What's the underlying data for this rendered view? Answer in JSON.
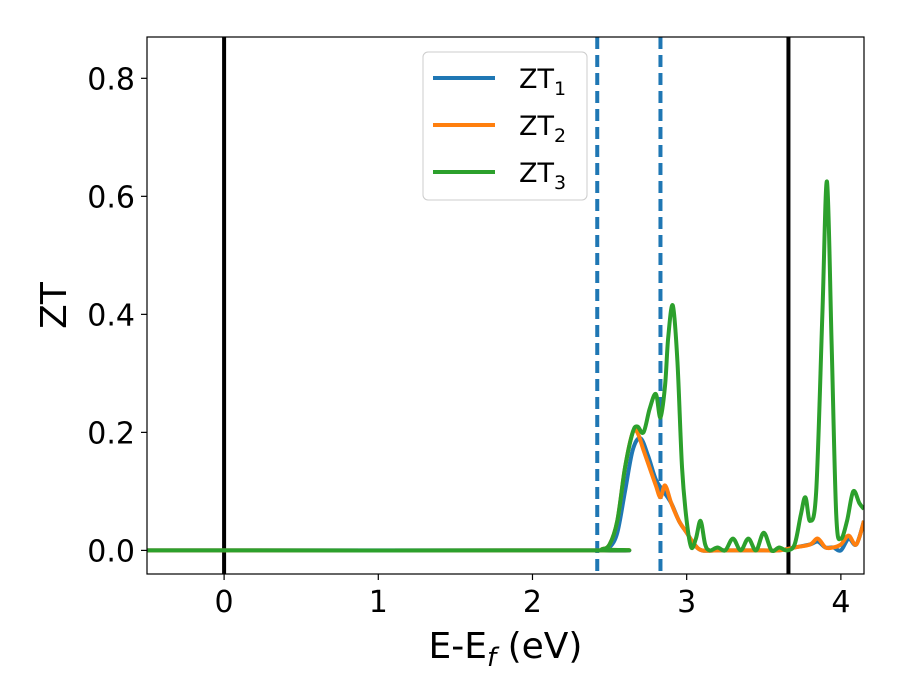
{
  "chart_data": {
    "type": "line",
    "xlabel": "E-E",
    "xlabel_sub": "f",
    "xlabel_unit": " (eV)",
    "ylabel": "ZT",
    "xlim": [
      -0.5,
      4.15
    ],
    "ylim": [
      -0.04,
      0.87
    ],
    "xticks": [
      0,
      1,
      2,
      3,
      4
    ],
    "xtick_labels": [
      "0",
      "1",
      "2",
      "3",
      "4"
    ],
    "yticks": [
      0.0,
      0.2,
      0.4,
      0.6,
      0.8
    ],
    "ytick_labels": [
      "0.0",
      "0.2",
      "0.4",
      "0.6",
      "0.8"
    ],
    "grid": false,
    "legend_position": "top-center",
    "vlines": [
      {
        "x": 0.0,
        "style": "solid",
        "color": "#000000"
      },
      {
        "x": 3.66,
        "style": "solid",
        "color": "#000000"
      },
      {
        "x": 2.42,
        "style": "dashed",
        "color": "#1f77b4"
      },
      {
        "x": 2.83,
        "style": "dashed",
        "color": "#1f77b4"
      }
    ],
    "series": [
      {
        "name": "ZT",
        "subscript": "1",
        "color": "#1f77b4",
        "x": [
          -0.5,
          2.4,
          2.45,
          2.5,
          2.55,
          2.6,
          2.65,
          2.7,
          2.75,
          2.8,
          2.85,
          2.9,
          2.95,
          3.0,
          3.05,
          3.1,
          3.2,
          3.3,
          3.4,
          3.5,
          3.6,
          3.7,
          3.8,
          3.85,
          3.9,
          3.95,
          4.0,
          4.05,
          4.1,
          4.15
        ],
        "y": [
          0.0,
          0.0,
          0.0,
          0.005,
          0.03,
          0.1,
          0.17,
          0.19,
          0.16,
          0.12,
          0.1,
          0.08,
          0.05,
          0.03,
          0.01,
          0.0,
          0.0,
          0.0,
          0.0,
          0.0,
          0.0,
          0.005,
          0.01,
          0.015,
          0.005,
          0.005,
          0.0,
          0.02,
          0.01,
          0.05
        ]
      },
      {
        "name": "ZT",
        "subscript": "2",
        "color": "#ff7f0e",
        "x": [
          -0.5,
          2.4,
          2.45,
          2.5,
          2.55,
          2.6,
          2.65,
          2.68,
          2.72,
          2.76,
          2.8,
          2.83,
          2.86,
          2.9,
          2.95,
          3.0,
          3.05,
          3.1,
          3.2,
          3.3,
          3.4,
          3.5,
          3.6,
          3.7,
          3.8,
          3.85,
          3.9,
          3.95,
          4.0,
          4.05,
          4.1,
          4.15
        ],
        "y": [
          0.0,
          0.0,
          0.002,
          0.01,
          0.05,
          0.14,
          0.2,
          0.2,
          0.17,
          0.14,
          0.11,
          0.09,
          0.11,
          0.08,
          0.05,
          0.03,
          0.01,
          0.0,
          0.0,
          0.0,
          0.0,
          0.0,
          0.0,
          0.005,
          0.01,
          0.02,
          0.005,
          0.005,
          0.01,
          0.025,
          0.01,
          0.05
        ]
      },
      {
        "name": "ZT",
        "subscript": "3",
        "color": "#2ca02c",
        "x": [
          -0.5,
          2.4,
          2.45,
          2.5,
          2.55,
          2.6,
          2.65,
          2.68,
          2.72,
          2.76,
          2.8,
          2.83,
          2.86,
          2.88,
          2.91,
          2.94,
          2.97,
          3.0,
          3.03,
          3.06,
          3.09,
          3.12,
          3.15,
          3.2,
          3.25,
          3.3,
          3.35,
          3.4,
          3.45,
          3.5,
          3.55,
          3.6,
          3.65,
          3.7,
          3.74,
          3.77,
          3.8,
          3.84,
          3.88,
          3.91,
          3.94,
          3.97,
          4.0,
          4.04,
          4.08,
          4.12,
          4.15
        ],
        "y": [
          0.0,
          0.0,
          0.002,
          0.01,
          0.05,
          0.14,
          0.2,
          0.21,
          0.2,
          0.24,
          0.265,
          0.225,
          0.28,
          0.36,
          0.415,
          0.32,
          0.14,
          0.05,
          0.005,
          0.02,
          0.05,
          0.01,
          0.0,
          0.005,
          0.0,
          0.02,
          0.0,
          0.02,
          0.0,
          0.03,
          0.0,
          0.005,
          0.0,
          0.01,
          0.06,
          0.09,
          0.05,
          0.1,
          0.4,
          0.625,
          0.35,
          0.06,
          0.02,
          0.05,
          0.1,
          0.08,
          0.07
        ]
      }
    ]
  }
}
